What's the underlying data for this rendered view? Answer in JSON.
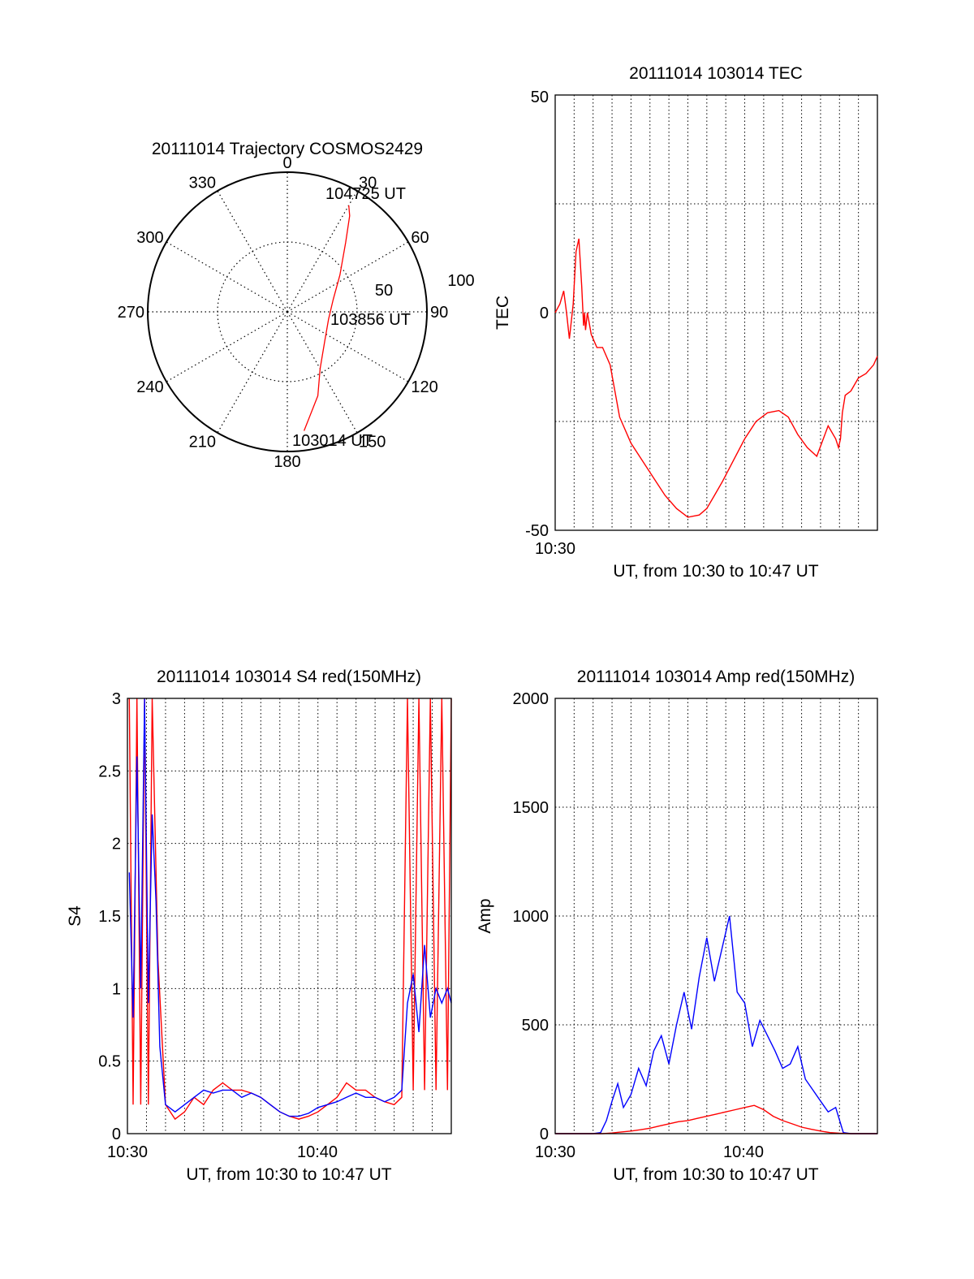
{
  "colors": {
    "red": "#ff0000",
    "blue": "#0000ff",
    "axes": "#000000",
    "background": "#ffffff"
  },
  "chart_data": [
    {
      "type": "polar",
      "title": "20111014 Trajectory COSMOS2429",
      "azimuth_labels": [
        "0",
        "30",
        "60",
        "90",
        "120",
        "150",
        "180",
        "210",
        "240",
        "270",
        "300",
        "330"
      ],
      "radial_labels": [
        "50",
        "100"
      ],
      "series": [
        {
          "color": "red",
          "points": [
            {
              "az": 172,
              "r": 86
            },
            {
              "az": 160,
              "r": 64
            },
            {
              "az": 150,
              "r": 47
            },
            {
              "az": 128,
              "r": 34
            },
            {
              "az": 100,
              "r": 30
            },
            {
              "az": 75,
              "r": 34
            },
            {
              "az": 55,
              "r": 46
            },
            {
              "az": 40,
              "r": 65
            },
            {
              "az": 33,
              "r": 82
            },
            {
              "az": 30,
              "r": 88
            }
          ]
        }
      ],
      "annotations": [
        {
          "text": "104725 UT"
        },
        {
          "text": "103856 UT"
        },
        {
          "text": "103014 UT"
        }
      ]
    },
    {
      "type": "line",
      "title": "20111014 103014 TEC",
      "xlabel": "UT, from 10:30 to 10:47 UT",
      "ylabel": "TEC",
      "x_tick_labels": [
        "10:30"
      ],
      "y_tick_labels": [
        "50",
        "0",
        "-50"
      ],
      "xlim": [
        0,
        17
      ],
      "ylim": [
        -50,
        50
      ],
      "series": [
        {
          "color": "red",
          "x": [
            0,
            0.25,
            0.45,
            0.6,
            0.75,
            0.95,
            1.1,
            1.25,
            1.4,
            1.5,
            1.55,
            1.6,
            1.7,
            1.9,
            2.2,
            2.5,
            2.9,
            3.4,
            4.0,
            4.6,
            5.2,
            5.8,
            6.4,
            7.0,
            7.6,
            8.0,
            8.4,
            8.8,
            9.4,
            10.0,
            10.6,
            11.2,
            11.8,
            12.3,
            12.8,
            13.3,
            13.8,
            14.4,
            14.8,
            14.95,
            15.05,
            15.15,
            15.3,
            15.6,
            16.0,
            16.4,
            16.8,
            17.0
          ],
          "y": [
            0,
            2,
            5,
            0,
            -6,
            2,
            14,
            17,
            6,
            -3,
            0,
            -4,
            0,
            -5,
            -8,
            -8,
            -12,
            -24,
            -30,
            -34,
            -38,
            -42,
            -45,
            -47,
            -46.5,
            -45,
            -42,
            -39,
            -34,
            -29,
            -25,
            -23,
            -22.5,
            -24,
            -28,
            -31,
            -33,
            -26,
            -29,
            -31,
            -29,
            -23,
            -19,
            -18,
            -15,
            -14,
            -12,
            -10
          ]
        }
      ]
    },
    {
      "type": "line",
      "title": "20111014 103014 S4 red(150MHz)",
      "xlabel": "UT, from 10:30 to 10:47 UT",
      "ylabel": "S4",
      "x_tick_labels": [
        "10:30",
        "10:40"
      ],
      "y_tick_labels": [
        "0",
        "0.5",
        "1",
        "1.5",
        "2",
        "2.5",
        "3"
      ],
      "xlim": [
        0,
        17
      ],
      "ylim": [
        0,
        3
      ],
      "series": [
        {
          "color": "red",
          "x": [
            0.1,
            0.3,
            0.5,
            0.7,
            0.9,
            1.1,
            1.3,
            1.6,
            2.0,
            2.5,
            3.0,
            3.5,
            4.0,
            4.5,
            5.0,
            5.5,
            6.0,
            6.5,
            7.0,
            7.5,
            8.0,
            8.5,
            9.0,
            9.5,
            10.0,
            10.5,
            11.0,
            11.5,
            12.0,
            12.5,
            13.0,
            13.5,
            14.0,
            14.4,
            14.7,
            15.0,
            15.3,
            15.6,
            15.9,
            16.2,
            16.5,
            16.8,
            17.0
          ],
          "y": [
            3,
            0.2,
            3,
            0.2,
            3,
            0.2,
            3,
            1.2,
            0.2,
            0.1,
            0.15,
            0.25,
            0.2,
            0.3,
            0.35,
            0.3,
            0.3,
            0.28,
            0.25,
            0.2,
            0.15,
            0.12,
            0.1,
            0.12,
            0.15,
            0.2,
            0.25,
            0.35,
            0.3,
            0.3,
            0.25,
            0.22,
            0.2,
            0.25,
            3,
            0.3,
            3,
            0.3,
            3,
            0.3,
            3,
            0.3,
            3
          ]
        },
        {
          "color": "blue",
          "x": [
            0.1,
            0.3,
            0.5,
            0.7,
            0.9,
            1.1,
            1.3,
            1.5,
            1.7,
            2.0,
            2.5,
            3.0,
            3.5,
            4.0,
            4.5,
            5.0,
            5.5,
            6.0,
            6.5,
            7.0,
            7.5,
            8.0,
            8.5,
            9.0,
            9.5,
            10.0,
            10.5,
            11.0,
            11.5,
            12.0,
            12.5,
            13.0,
            13.5,
            14.0,
            14.4,
            14.7,
            15.0,
            15.3,
            15.6,
            15.9,
            16.2,
            16.5,
            16.8,
            17.0
          ],
          "y": [
            1.8,
            0.8,
            2.6,
            1.0,
            3.0,
            0.9,
            2.2,
            1.6,
            0.6,
            0.2,
            0.15,
            0.2,
            0.25,
            0.3,
            0.28,
            0.3,
            0.3,
            0.25,
            0.28,
            0.25,
            0.2,
            0.15,
            0.12,
            0.12,
            0.14,
            0.18,
            0.2,
            0.22,
            0.25,
            0.28,
            0.25,
            0.25,
            0.22,
            0.25,
            0.3,
            0.9,
            1.1,
            0.7,
            1.3,
            0.8,
            1.0,
            0.9,
            1.0,
            0.9
          ]
        }
      ]
    },
    {
      "type": "line",
      "title": "20111014 103014 Amp red(150MHz)",
      "xlabel": "UT, from 10:30 to 10:47 UT",
      "ylabel": "Amp",
      "x_tick_labels": [
        "10:30",
        "10:40"
      ],
      "y_tick_labels": [
        "0",
        "500",
        "1000",
        "1500",
        "2000"
      ],
      "xlim": [
        0,
        17
      ],
      "ylim": [
        0,
        2000
      ],
      "series": [
        {
          "color": "blue",
          "x": [
            0,
            1.0,
            2.0,
            2.4,
            2.7,
            3.0,
            3.3,
            3.6,
            4.0,
            4.4,
            4.8,
            5.2,
            5.6,
            6.0,
            6.4,
            6.8,
            7.2,
            7.6,
            8.0,
            8.4,
            8.8,
            9.2,
            9.6,
            10.0,
            10.4,
            10.8,
            11.2,
            11.6,
            12.0,
            12.4,
            12.8,
            13.2,
            13.6,
            14.0,
            14.4,
            14.8,
            15.2,
            15.6,
            16.0,
            16.5,
            17.0
          ],
          "y": [
            0,
            0,
            0,
            5,
            60,
            150,
            230,
            120,
            180,
            300,
            220,
            380,
            450,
            320,
            500,
            650,
            480,
            720,
            900,
            700,
            850,
            1000,
            650,
            600,
            400,
            520,
            450,
            380,
            300,
            320,
            400,
            250,
            200,
            150,
            100,
            120,
            5,
            0,
            0,
            0,
            0
          ]
        },
        {
          "color": "red",
          "x": [
            0,
            2.5,
            3.0,
            3.5,
            4.0,
            4.5,
            5.0,
            5.5,
            6.0,
            6.5,
            7.0,
            7.5,
            8.0,
            8.5,
            9.0,
            9.5,
            10.0,
            10.5,
            11.0,
            11.5,
            12.0,
            12.5,
            13.0,
            13.5,
            14.0,
            14.5,
            15.0,
            15.5,
            17.0
          ],
          "y": [
            0,
            0,
            3,
            8,
            12,
            18,
            25,
            35,
            45,
            55,
            60,
            70,
            80,
            90,
            100,
            110,
            120,
            130,
            110,
            80,
            60,
            45,
            30,
            20,
            12,
            5,
            2,
            0,
            0
          ]
        }
      ]
    }
  ]
}
